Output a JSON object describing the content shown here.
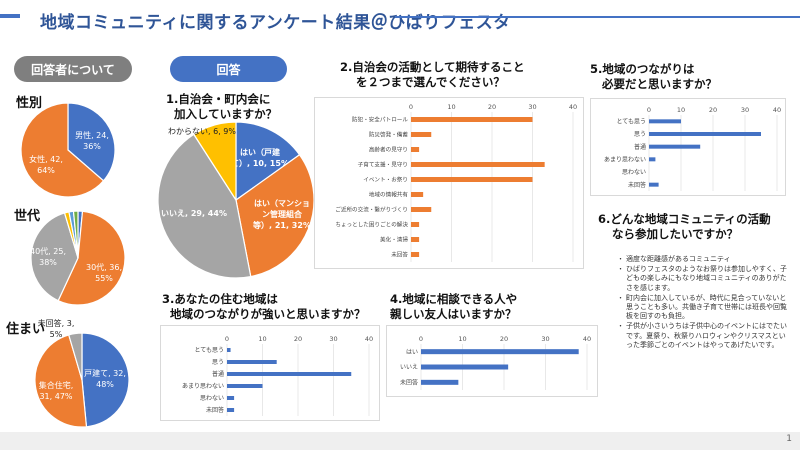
{
  "header": {
    "title": "地域コミュニティに関するアンケート結果＠ひばりフェスタ"
  },
  "pills": {
    "respondents": "回答者について",
    "answers": "回答"
  },
  "sections": {
    "gender": "性別",
    "age": "世代",
    "housing": "住まい"
  },
  "questions": {
    "q1": [
      "1.自治会・町内会に",
      "加入していますか？"
    ],
    "q2": [
      "2.自治会の活動として期待すること",
      "を２つまで選んでください？"
    ],
    "q3": [
      "3.あなたの住む地域は",
      "地域のつながりが強いと思いますか？"
    ],
    "q4": [
      "4.地域に相談できる人や",
      "親しい友人はいますか？"
    ],
    "q5": [
      "5.地域のつながりは",
      "必要だと思いますか？"
    ],
    "q6": [
      "6.どんな地域コミュニティの活動",
      "なら参加したいですか？"
    ]
  },
  "q6_answers": [
    "適度な距離感があるコミュニティ",
    "ひばりフェスタのようなお祭りは参加しやすく、子どもの楽しみにもなり地域コミュニティのありがたさを感じます。",
    "町内会に加入しているが、時代に見合っていないと思うことも多い。共働き子育て世帯には班長や回覧板を回すのも負担。",
    "子供が小さいうちは子供中心のイベントにはでたいです。夏祭り、秋祭りハロウィンやクリスマスといった季節ごとのイベントはやってあげたいです。"
  ],
  "colors": {
    "blue": "#4472c4",
    "orange": "#ed7d31",
    "gray": "#a5a5a5",
    "yellow": "#ffc000",
    "lightblue": "#5b9bd5",
    "green": "#70ad47",
    "title": "#2f5597"
  },
  "page_number": "1",
  "chart_data": [
    {
      "id": "gender",
      "type": "pie",
      "slices": [
        {
          "label": "男性, 24,",
          "pct": "36%",
          "value": 24,
          "color": "#4472c4"
        },
        {
          "label": "女性, 42,",
          "pct": "64%",
          "value": 42,
          "color": "#ed7d31"
        }
      ]
    },
    {
      "id": "age",
      "type": "pie",
      "slices": [
        {
          "label": "",
          "pct": "",
          "value": 1,
          "color": "#4472c4"
        },
        {
          "label": "30代, 36,",
          "pct": "55%",
          "value": 36,
          "color": "#ed7d31"
        },
        {
          "label": "40代, 25,",
          "pct": "38%",
          "value": 25,
          "color": "#a5a5a5"
        },
        {
          "label": "",
          "pct": "",
          "value": 1,
          "color": "#ffc000"
        },
        {
          "label": "",
          "pct": "",
          "value": 1,
          "color": "#5b9bd5"
        },
        {
          "label": "",
          "pct": "",
          "value": 1,
          "color": "#70ad47"
        }
      ]
    },
    {
      "id": "housing",
      "type": "pie",
      "slices": [
        {
          "label": "戸建て, 32,",
          "pct": "48%",
          "value": 32,
          "color": "#4472c4"
        },
        {
          "label": "集合住宅,",
          "pct": "31, 47%",
          "value": 31,
          "color": "#ed7d31"
        },
        {
          "label": "未回答, 3,",
          "pct": "5%",
          "value": 3,
          "color": "#a5a5a5"
        }
      ]
    },
    {
      "id": "q1",
      "type": "pie",
      "slices": [
        {
          "label": "はい（戸建",
          "label2": "て）, 10, 15%",
          "value": 10,
          "color": "#4472c4"
        },
        {
          "label": "はい（マンショ",
          "label2": "ン管理組合",
          "label3": "等）, 21, 32%",
          "value": 21,
          "color": "#ed7d31"
        },
        {
          "label": "いいえ, 29, 44%",
          "value": 29,
          "color": "#a5a5a5"
        },
        {
          "label": "わからない, 6, 9%",
          "value": 6,
          "color": "#ffc000"
        }
      ]
    },
    {
      "id": "q2",
      "type": "bar",
      "orientation": "horizontal",
      "xlim": [
        0,
        40
      ],
      "ticks": [
        0,
        10,
        20,
        30,
        40
      ],
      "categories": [
        "防犯・安全パトロール",
        "防災啓発・備蓄",
        "高齢者の見守り",
        "子育て支援・見守り",
        "イベント・お祭り",
        "地域の情報共有",
        "ご近所の交流・繋がりづくり",
        "ちょっとした困りごとの解決",
        "美化・清掃",
        "未回答"
      ],
      "values": [
        30,
        5,
        2,
        33,
        30,
        3,
        5,
        2,
        2,
        2
      ]
    },
    {
      "id": "q3",
      "type": "bar",
      "orientation": "horizontal",
      "xlim": [
        0,
        40
      ],
      "ticks": [
        0,
        10,
        20,
        30,
        40
      ],
      "categories": [
        "とても思う",
        "思う",
        "普通",
        "あまり思わない",
        "思わない",
        "未回答"
      ],
      "values": [
        1,
        14,
        35,
        10,
        2,
        2
      ]
    },
    {
      "id": "q4",
      "type": "bar",
      "orientation": "horizontal",
      "xlim": [
        0,
        40
      ],
      "ticks": [
        0,
        10,
        20,
        30,
        40
      ],
      "categories": [
        "はい",
        "いいえ",
        "未回答"
      ],
      "values": [
        38,
        21,
        9
      ]
    },
    {
      "id": "q5",
      "type": "bar",
      "orientation": "horizontal",
      "xlim": [
        0,
        40
      ],
      "ticks": [
        0,
        10,
        20,
        30,
        40
      ],
      "categories": [
        "とても思う",
        "思う",
        "普通",
        "あまり思わない",
        "思わない",
        "未回答"
      ],
      "values": [
        10,
        35,
        16,
        2,
        0,
        3
      ]
    }
  ]
}
